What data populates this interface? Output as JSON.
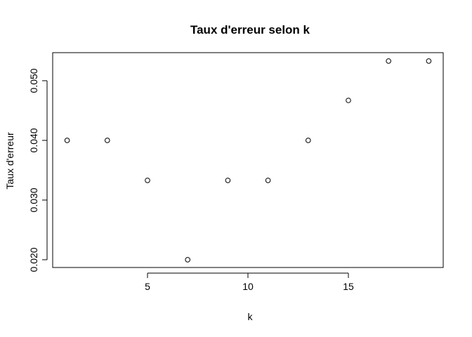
{
  "chart_data": {
    "type": "scatter",
    "title": "Taux d'erreur selon k",
    "xlabel": "k",
    "ylabel": "Taux d'erreur",
    "x": [
      1,
      3,
      5,
      7,
      9,
      11,
      13,
      15,
      17,
      19
    ],
    "y": [
      0.04,
      0.04,
      0.0333,
      0.02,
      0.0333,
      0.0333,
      0.04,
      0.0467,
      0.0533,
      0.0533
    ],
    "x_ticks": [
      5,
      10,
      15
    ],
    "x_tick_labels": [
      "5",
      "10",
      "15"
    ],
    "y_ticks": [
      0.02,
      0.03,
      0.04,
      0.05
    ],
    "y_tick_labels": [
      "0.020",
      "0.030",
      "0.040",
      "0.050"
    ],
    "xlim": [
      0.28,
      19.72
    ],
    "ylim": [
      0.0187,
      0.0547
    ],
    "grid": false,
    "legend": "none",
    "marker": "open-circle",
    "colors": {
      "marker_stroke": "#000000",
      "background": "#ffffff",
      "axis": "#000000"
    }
  }
}
